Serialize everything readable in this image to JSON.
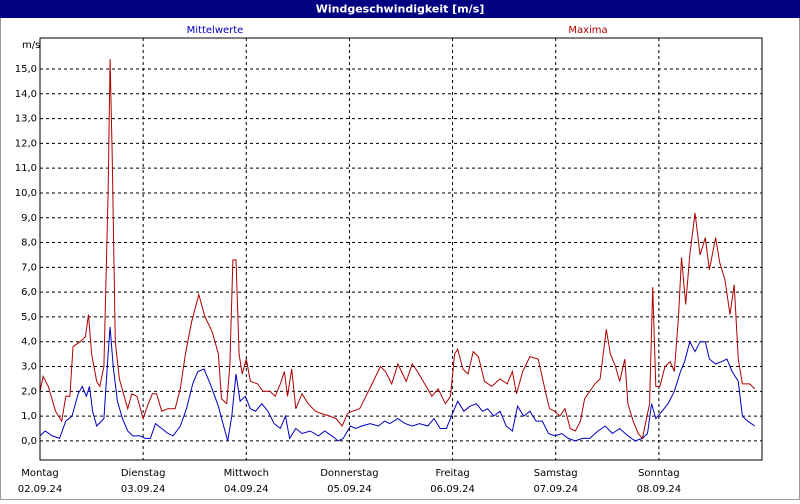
{
  "chart_data": {
    "type": "line",
    "title": "Windgeschwindigkeit [m/s]",
    "y_label": "m/s",
    "xlim": [
      0,
      7
    ],
    "ylim": [
      -0.77,
      16.25
    ],
    "grid": true,
    "xticks": [
      {
        "value": 0,
        "label": "Montag",
        "date": "02.09.24"
      },
      {
        "value": 1,
        "label": "Dienstag",
        "date": "03.09.24"
      },
      {
        "value": 2,
        "label": "Mittwoch",
        "date": "04.09.24"
      },
      {
        "value": 3,
        "label": "Donnerstag",
        "date": "05.09.24"
      },
      {
        "value": 4,
        "label": "Freitag",
        "date": "06.09.24"
      },
      {
        "value": 5,
        "label": "Samstag",
        "date": "07.09.24"
      },
      {
        "value": 6,
        "label": "Sonntag",
        "date": "08.09.24"
      }
    ],
    "yticks": [
      {
        "value": 0,
        "label": "0,0"
      },
      {
        "value": 1,
        "label": "1,0"
      },
      {
        "value": 2,
        "label": "2,0"
      },
      {
        "value": 3,
        "label": "3,0"
      },
      {
        "value": 4,
        "label": "4,0"
      },
      {
        "value": 5,
        "label": "5,0"
      },
      {
        "value": 6,
        "label": "6,0"
      },
      {
        "value": 7,
        "label": "7,0"
      },
      {
        "value": 8,
        "label": "8,0"
      },
      {
        "value": 9,
        "label": "9,0"
      },
      {
        "value": 10,
        "label": "10,0"
      },
      {
        "value": 11,
        "label": "11,0"
      },
      {
        "value": 12,
        "label": "12,0"
      },
      {
        "value": 13,
        "label": "13,0"
      },
      {
        "value": 14,
        "label": "14,0"
      },
      {
        "value": 15,
        "label": "15,0"
      }
    ],
    "series": [
      {
        "name": "Mittelwerte",
        "color": "#0000c0",
        "x": [
          0.0,
          0.05,
          0.12,
          0.19,
          0.25,
          0.31,
          0.37,
          0.41,
          0.45,
          0.48,
          0.51,
          0.55,
          0.62,
          0.66,
          0.68,
          0.71,
          0.75,
          0.8,
          0.85,
          0.9,
          0.97,
          1.02,
          1.07,
          1.12,
          1.18,
          1.24,
          1.29,
          1.36,
          1.42,
          1.48,
          1.53,
          1.59,
          1.65,
          1.73,
          1.78,
          1.82,
          1.86,
          1.9,
          1.94,
          1.99,
          2.04,
          2.09,
          2.15,
          2.21,
          2.27,
          2.33,
          2.38,
          2.42,
          2.48,
          2.54,
          2.62,
          2.7,
          2.76,
          2.83,
          2.89,
          2.94,
          3.01,
          3.06,
          3.12,
          3.2,
          3.28,
          3.34,
          3.39,
          3.47,
          3.54,
          3.61,
          3.68,
          3.76,
          3.82,
          3.88,
          3.94,
          3.99,
          4.05,
          4.11,
          4.17,
          4.23,
          4.29,
          4.34,
          4.4,
          4.46,
          4.52,
          4.58,
          4.63,
          4.69,
          4.75,
          4.81,
          4.87,
          4.93,
          4.99,
          5.06,
          5.12,
          5.19,
          5.26,
          5.33,
          5.41,
          5.48,
          5.55,
          5.62,
          5.7,
          5.77,
          5.84,
          5.89,
          5.93,
          5.97,
          6.03,
          6.09,
          6.15,
          6.21,
          6.25,
          6.3,
          6.35,
          6.4,
          6.45,
          6.49,
          6.55,
          6.61,
          6.66,
          6.71,
          6.77,
          6.81,
          6.86,
          6.93
        ],
        "values": [
          0.2,
          0.4,
          0.2,
          0.1,
          0.8,
          1.0,
          1.9,
          2.2,
          1.8,
          2.2,
          1.2,
          0.6,
          0.9,
          3.5,
          4.6,
          3.0,
          1.6,
          0.9,
          0.4,
          0.2,
          0.2,
          0.1,
          0.1,
          0.7,
          0.5,
          0.3,
          0.2,
          0.6,
          1.3,
          2.3,
          2.8,
          2.9,
          2.3,
          1.4,
          0.6,
          0.0,
          1.0,
          2.7,
          1.6,
          1.8,
          1.3,
          1.2,
          1.5,
          1.2,
          0.7,
          0.5,
          1.0,
          0.1,
          0.5,
          0.3,
          0.4,
          0.2,
          0.4,
          0.2,
          0.0,
          0.1,
          0.6,
          0.5,
          0.6,
          0.7,
          0.6,
          0.8,
          0.7,
          0.9,
          0.7,
          0.6,
          0.7,
          0.6,
          0.9,
          0.5,
          0.5,
          1.0,
          1.6,
          1.2,
          1.4,
          1.5,
          1.2,
          1.3,
          1.0,
          1.2,
          0.6,
          0.4,
          1.4,
          1.0,
          1.2,
          0.8,
          0.8,
          0.3,
          0.2,
          0.3,
          0.1,
          0.0,
          0.1,
          0.1,
          0.4,
          0.6,
          0.3,
          0.5,
          0.2,
          0.0,
          0.1,
          0.3,
          1.5,
          0.9,
          1.2,
          1.5,
          2.0,
          2.8,
          3.2,
          4.0,
          3.6,
          4.0,
          4.0,
          3.3,
          3.1,
          3.2,
          3.3,
          2.8,
          2.4,
          1.0,
          0.8,
          0.6
        ]
      },
      {
        "name": "Maxima",
        "color": "#b00000",
        "x": [
          0.0,
          0.03,
          0.08,
          0.15,
          0.21,
          0.25,
          0.29,
          0.32,
          0.39,
          0.44,
          0.47,
          0.5,
          0.55,
          0.58,
          0.62,
          0.66,
          0.68,
          0.7,
          0.73,
          0.77,
          0.81,
          0.85,
          0.89,
          0.94,
          1.0,
          1.05,
          1.09,
          1.13,
          1.18,
          1.24,
          1.31,
          1.36,
          1.41,
          1.47,
          1.54,
          1.6,
          1.67,
          1.73,
          1.76,
          1.81,
          1.84,
          1.87,
          1.9,
          1.93,
          1.96,
          2.0,
          2.04,
          2.11,
          2.16,
          2.23,
          2.28,
          2.33,
          2.37,
          2.4,
          2.44,
          2.48,
          2.54,
          2.6,
          2.67,
          2.73,
          2.81,
          2.87,
          2.93,
          2.98,
          3.03,
          3.1,
          3.16,
          3.22,
          3.3,
          3.35,
          3.41,
          3.47,
          3.55,
          3.61,
          3.66,
          3.73,
          3.8,
          3.86,
          3.93,
          3.98,
          4.02,
          4.05,
          4.1,
          4.15,
          4.2,
          4.25,
          4.31,
          4.38,
          4.46,
          4.53,
          4.58,
          4.62,
          4.68,
          4.75,
          4.83,
          4.9,
          4.94,
          4.99,
          5.04,
          5.09,
          5.14,
          5.19,
          5.24,
          5.28,
          5.38,
          5.43,
          5.49,
          5.53,
          5.58,
          5.62,
          5.67,
          5.7,
          5.75,
          5.8,
          5.84,
          5.88,
          5.91,
          5.94,
          5.97,
          6.01,
          6.06,
          6.11,
          6.15,
          6.19,
          6.22,
          6.26,
          6.3,
          6.35,
          6.4,
          6.45,
          6.49,
          6.55,
          6.59,
          6.64,
          6.69,
          6.73,
          6.77,
          6.81,
          6.88,
          6.93
        ],
        "values": [
          2.0,
          2.6,
          2.2,
          1.2,
          0.8,
          1.8,
          1.8,
          3.8,
          4.0,
          4.2,
          5.1,
          3.5,
          2.4,
          2.2,
          3.0,
          10.0,
          15.4,
          11.5,
          4.0,
          2.5,
          1.9,
          1.3,
          1.9,
          1.8,
          0.9,
          1.5,
          1.9,
          1.9,
          1.2,
          1.3,
          1.3,
          2.1,
          3.5,
          4.8,
          5.9,
          5.0,
          4.4,
          3.5,
          1.7,
          1.5,
          3.0,
          7.3,
          7.3,
          3.5,
          2.7,
          3.3,
          2.4,
          2.3,
          2.0,
          2.0,
          1.8,
          2.3,
          2.8,
          1.8,
          2.9,
          1.3,
          1.9,
          1.5,
          1.2,
          1.1,
          1.0,
          0.9,
          0.6,
          1.1,
          1.2,
          1.3,
          1.8,
          2.3,
          3.0,
          2.8,
          2.3,
          3.1,
          2.4,
          3.1,
          2.8,
          2.3,
          1.8,
          2.1,
          1.5,
          1.8,
          3.5,
          3.7,
          2.9,
          2.7,
          3.6,
          3.4,
          2.4,
          2.2,
          2.5,
          2.3,
          2.8,
          1.9,
          2.8,
          3.4,
          3.3,
          2.0,
          1.3,
          1.2,
          1.0,
          1.3,
          0.5,
          0.4,
          0.8,
          1.7,
          2.3,
          2.5,
          4.5,
          3.5,
          3.0,
          2.4,
          3.3,
          1.5,
          0.8,
          0.3,
          0.1,
          0.9,
          1.5,
          6.2,
          2.2,
          2.2,
          3.0,
          3.2,
          2.8,
          5.0,
          7.4,
          5.5,
          7.5,
          9.2,
          7.5,
          8.2,
          6.9,
          8.2,
          7.2,
          6.5,
          5.1,
          6.3,
          3.3,
          2.3,
          2.3,
          2.1
        ]
      }
    ]
  }
}
